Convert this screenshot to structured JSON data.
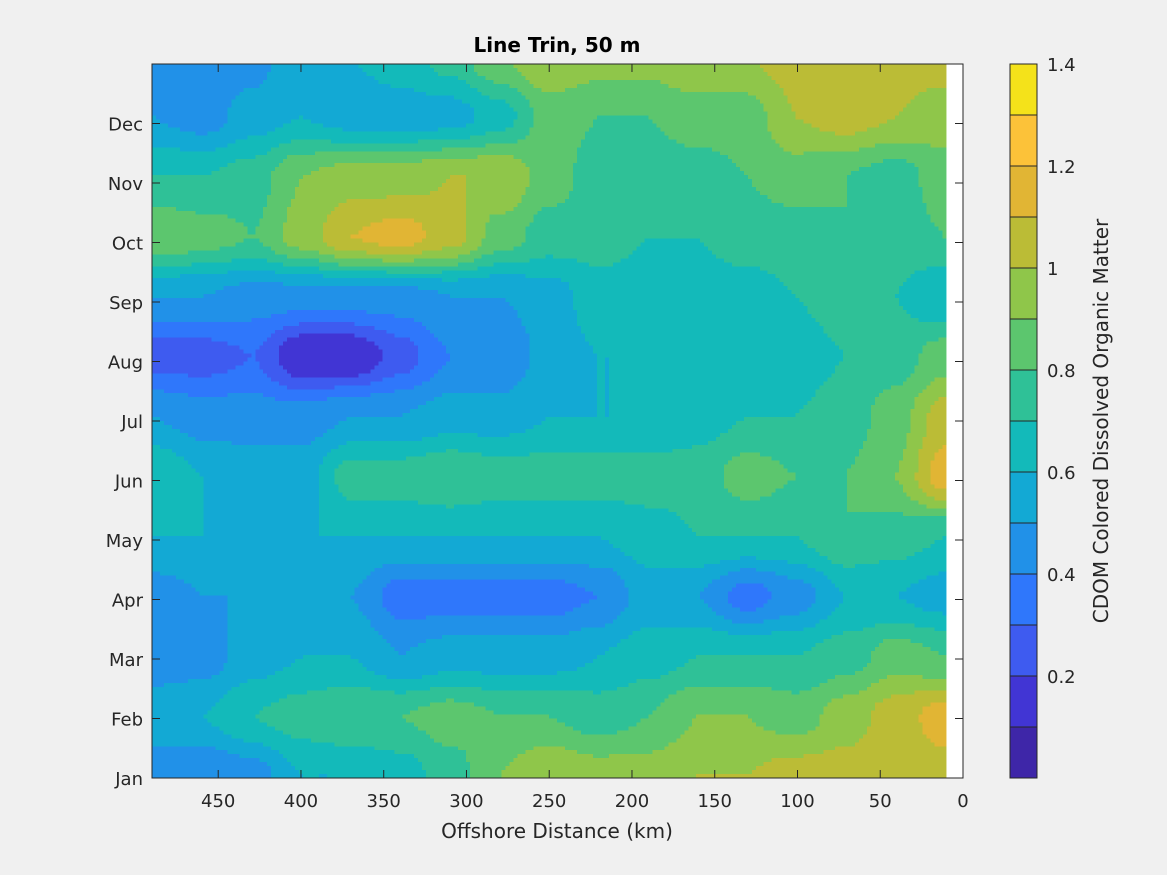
{
  "chart_data": {
    "type": "heatmap",
    "title": "Line Trin, 50 m",
    "xlabel": "Offshore Distance (km)",
    "ylabel": "",
    "colorbar_label": "CDOM Colored Dissolved Organic Matter",
    "xlim": [
      490,
      0
    ],
    "x_reversed": true,
    "x_ticks": [
      450,
      400,
      350,
      300,
      250,
      200,
      150,
      100,
      50,
      0
    ],
    "y_ticks": [
      "Jan",
      "Feb",
      "Mar",
      "Apr",
      "May",
      "Jun",
      "Jul",
      "Aug",
      "Sep",
      "Oct",
      "Nov",
      "Dec"
    ],
    "clim": [
      0,
      1.4
    ],
    "contour_levels": [
      0,
      0.1,
      0.2,
      0.3,
      0.4,
      0.5,
      0.6,
      0.7,
      0.8,
      0.9,
      1.0,
      1.1,
      1.2,
      1.3,
      1.4
    ],
    "colorbar_ticks": [
      0.2,
      0.4,
      0.6,
      0.8,
      1,
      1.2,
      1.4
    ],
    "colormap": [
      "#3e26a8",
      "#4135d4",
      "#3e5bf0",
      "#2f77fb",
      "#2191e8",
      "#13a9d4",
      "#13baba",
      "#2fc197",
      "#5cc66e",
      "#8fc64a",
      "#bbbc36",
      "#e1b534",
      "#fcc239",
      "#f4e21a"
    ],
    "grid": false,
    "distances_km": [
      490,
      460,
      430,
      400,
      370,
      340,
      310,
      280,
      250,
      220,
      190,
      160,
      130,
      100,
      70,
      40,
      10
    ],
    "months": [
      "Jan",
      "Feb",
      "Mar",
      "Apr",
      "May",
      "Jun",
      "Jul",
      "Aug",
      "Sep",
      "Oct",
      "Nov",
      "Dec"
    ],
    "values": [
      [
        0.45,
        0.4,
        0.45,
        0.6,
        0.6,
        0.65,
        0.75,
        0.9,
        1.0,
        0.95,
        0.95,
        1.0,
        1.0,
        1.05,
        1.05,
        1.05,
        1.05
      ],
      [
        0.55,
        0.6,
        0.7,
        0.75,
        0.8,
        0.8,
        0.85,
        0.8,
        0.8,
        0.75,
        0.8,
        0.9,
        0.9,
        0.85,
        0.95,
        1.05,
        1.15
      ],
      [
        0.45,
        0.45,
        0.55,
        0.6,
        0.6,
        0.5,
        0.55,
        0.55,
        0.55,
        0.6,
        0.65,
        0.7,
        0.7,
        0.7,
        0.75,
        0.85,
        0.8
      ],
      [
        0.45,
        0.5,
        0.5,
        0.5,
        0.5,
        0.35,
        0.35,
        0.35,
        0.35,
        0.4,
        0.55,
        0.5,
        0.35,
        0.45,
        0.6,
        0.6,
        0.55
      ],
      [
        0.6,
        0.6,
        0.55,
        0.6,
        0.6,
        0.6,
        0.6,
        0.6,
        0.6,
        0.6,
        0.65,
        0.7,
        0.7,
        0.7,
        0.8,
        0.75,
        0.7
      ],
      [
        0.7,
        0.6,
        0.55,
        0.55,
        0.75,
        0.75,
        0.8,
        0.75,
        0.75,
        0.75,
        0.75,
        0.75,
        0.85,
        0.8,
        0.8,
        0.9,
        1.15
      ],
      [
        0.5,
        0.45,
        0.45,
        0.45,
        0.5,
        0.5,
        0.55,
        0.55,
        0.6,
        0.6,
        0.6,
        0.65,
        0.7,
        0.7,
        0.75,
        0.85,
        1.05
      ],
      [
        0.25,
        0.25,
        0.3,
        0.1,
        0.1,
        0.25,
        0.4,
        0.4,
        0.55,
        0.6,
        0.6,
        0.6,
        0.65,
        0.65,
        0.7,
        0.75,
        0.85
      ],
      [
        0.5,
        0.5,
        0.45,
        0.45,
        0.45,
        0.45,
        0.5,
        0.5,
        0.55,
        0.65,
        0.65,
        0.65,
        0.65,
        0.7,
        0.75,
        0.7,
        0.6
      ],
      [
        0.9,
        0.85,
        0.8,
        0.95,
        1.1,
        1.15,
        1.05,
        0.85,
        0.75,
        0.75,
        0.7,
        0.7,
        0.75,
        0.75,
        0.8,
        0.75,
        0.8
      ],
      [
        0.7,
        0.7,
        0.75,
        0.9,
        0.95,
        0.95,
        1.0,
        1.0,
        0.85,
        0.75,
        0.75,
        0.75,
        0.8,
        0.85,
        0.8,
        0.75,
        0.85
      ],
      [
        0.5,
        0.45,
        0.55,
        0.6,
        0.55,
        0.55,
        0.55,
        0.65,
        0.85,
        0.8,
        0.8,
        0.85,
        0.85,
        1.0,
        1.05,
        1.0,
        0.95
      ]
    ]
  }
}
